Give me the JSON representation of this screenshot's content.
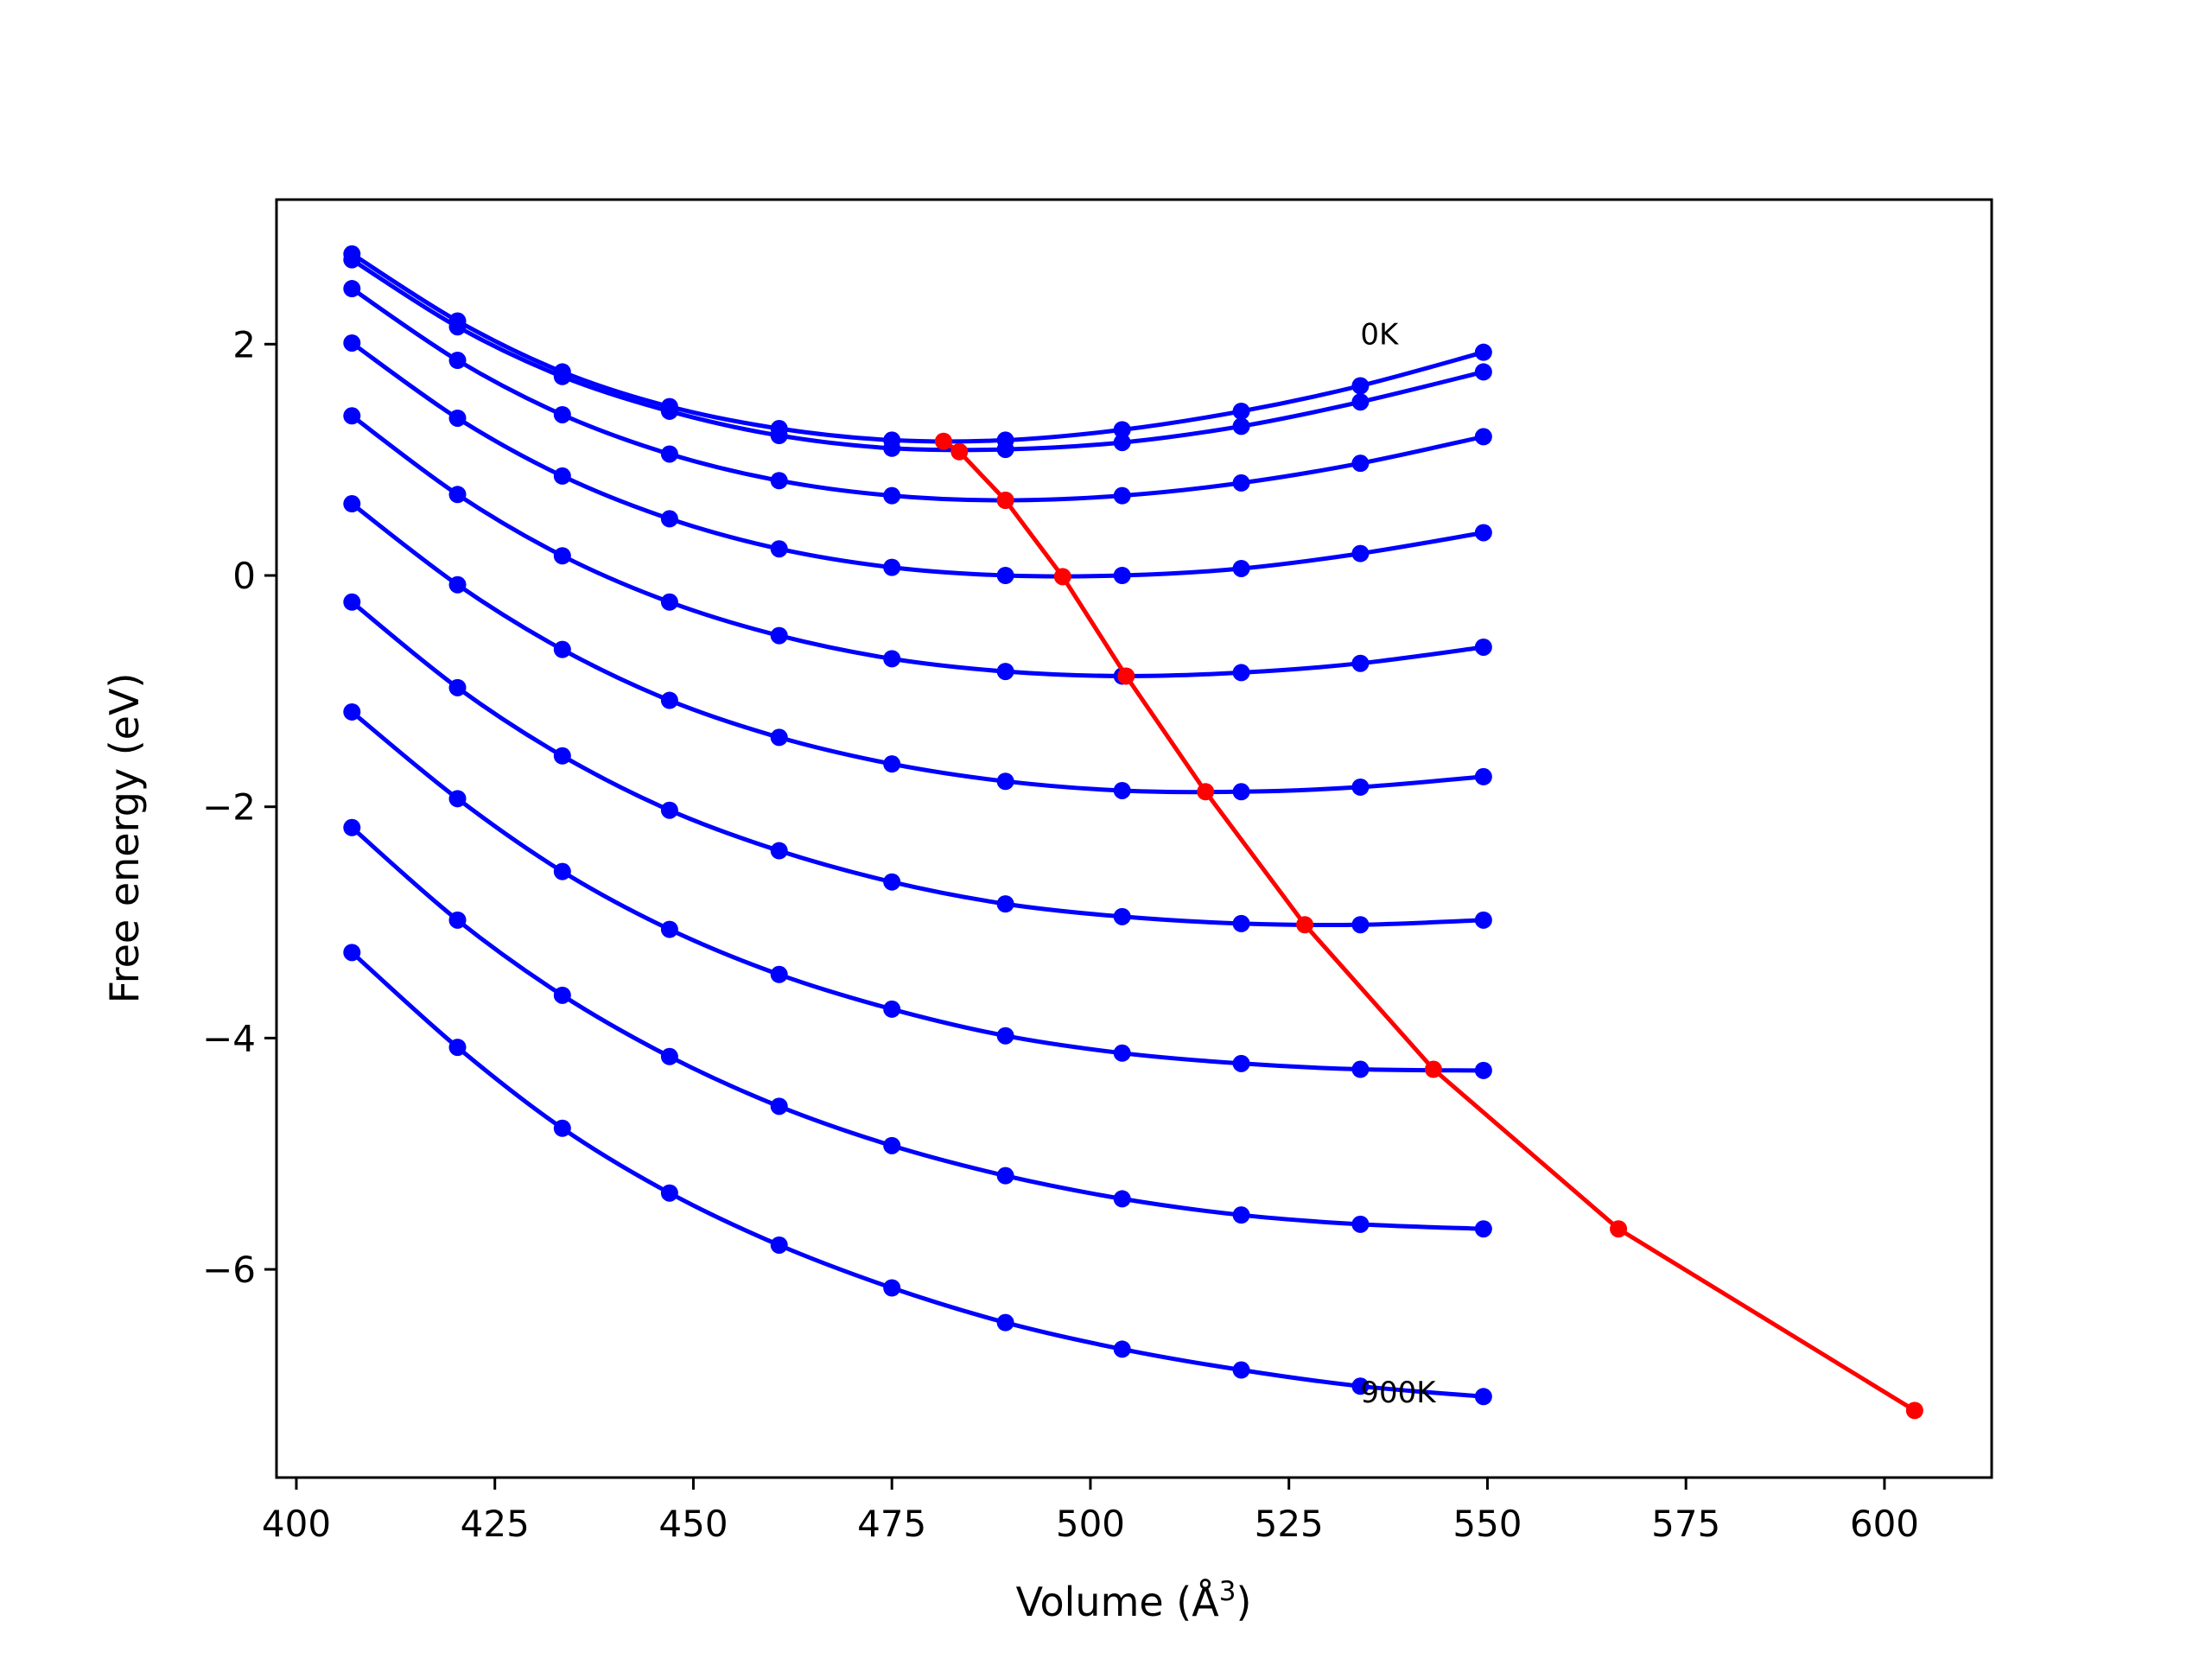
{
  "chart_data": {
    "type": "line",
    "title": "",
    "xlabel_prefix": "Volume (",
    "xlabel_unit_base": "Å",
    "xlabel_unit_exp": "3",
    "xlabel_suffix": ")",
    "ylabel": "Free energy (eV)",
    "xlim": [
      397.5,
      613.5
    ],
    "ylim": [
      -7.8,
      3.25
    ],
    "xticks": [
      400,
      425,
      450,
      475,
      500,
      525,
      550,
      575,
      600
    ],
    "xtick_labels": [
      "400",
      "425",
      "450",
      "475",
      "500",
      "525",
      "550",
      "575",
      "600"
    ],
    "yticks": [
      2,
      0,
      -2,
      -4,
      -6
    ],
    "ytick_labels": [
      "2",
      "0",
      "−2",
      "−4",
      "−6"
    ],
    "grid": false,
    "x": [
      407.0,
      420.3,
      433.5,
      447.0,
      460.8,
      475.0,
      489.3,
      504.0,
      519.0,
      534.0,
      549.5
    ],
    "series": [
      {
        "color": "#0000ff",
        "values": [
          2.78,
          2.2,
          1.76,
          1.46,
          1.27,
          1.17,
          1.17,
          1.26,
          1.42,
          1.64,
          1.93
        ]
      },
      {
        "color": "#0000ff",
        "values": [
          2.73,
          2.15,
          1.72,
          1.42,
          1.21,
          1.1,
          1.09,
          1.15,
          1.29,
          1.5,
          1.76
        ]
      },
      {
        "color": "#0000ff",
        "values": [
          2.48,
          1.86,
          1.39,
          1.05,
          0.82,
          0.69,
          0.65,
          0.69,
          0.8,
          0.97,
          1.2
        ]
      },
      {
        "color": "#0000ff",
        "values": [
          2.01,
          1.36,
          0.86,
          0.49,
          0.23,
          0.07,
          0.0,
          0.0,
          0.06,
          0.19,
          0.37
        ]
      },
      {
        "color": "#0000ff",
        "values": [
          1.38,
          0.7,
          0.17,
          -0.23,
          -0.52,
          -0.72,
          -0.83,
          -0.87,
          -0.84,
          -0.76,
          -0.62
        ]
      },
      {
        "color": "#0000ff",
        "values": [
          0.62,
          -0.08,
          -0.64,
          -1.08,
          -1.4,
          -1.63,
          -1.78,
          -1.86,
          -1.87,
          -1.83,
          -1.74
        ]
      },
      {
        "color": "#0000ff",
        "values": [
          -0.23,
          -0.97,
          -1.56,
          -2.03,
          -2.38,
          -2.65,
          -2.84,
          -2.95,
          -3.01,
          -3.02,
          -2.98
        ]
      },
      {
        "color": "#0000ff",
        "values": [
          -1.18,
          -1.93,
          -2.56,
          -3.06,
          -3.45,
          -3.75,
          -3.98,
          -4.13,
          -4.22,
          -4.27,
          -4.28
        ]
      },
      {
        "color": "#0000ff",
        "values": [
          -2.18,
          -2.98,
          -3.63,
          -4.16,
          -4.59,
          -4.93,
          -5.19,
          -5.39,
          -5.53,
          -5.61,
          -5.65
        ]
      },
      {
        "color": "#0000ff",
        "values": [
          -3.26,
          -4.08,
          -4.78,
          -5.34,
          -5.79,
          -6.16,
          -6.46,
          -6.69,
          -6.87,
          -7.01,
          -7.1
        ]
      }
    ],
    "equilibrium_series": {
      "color": "#ff0000",
      "x": [
        481.5,
        483.5,
        489.3,
        496.5,
        504.5,
        514.5,
        527.0,
        543.2,
        566.5,
        603.8
      ],
      "y": [
        1.16,
        1.07,
        0.65,
        -0.01,
        -0.87,
        -1.87,
        -3.02,
        -4.27,
        -5.65,
        -7.22
      ]
    },
    "annotations": [
      {
        "text": "0K",
        "x": 534.0,
        "y": 2.0
      },
      {
        "text": "900K",
        "x": 534.0,
        "y": -7.15
      }
    ]
  }
}
